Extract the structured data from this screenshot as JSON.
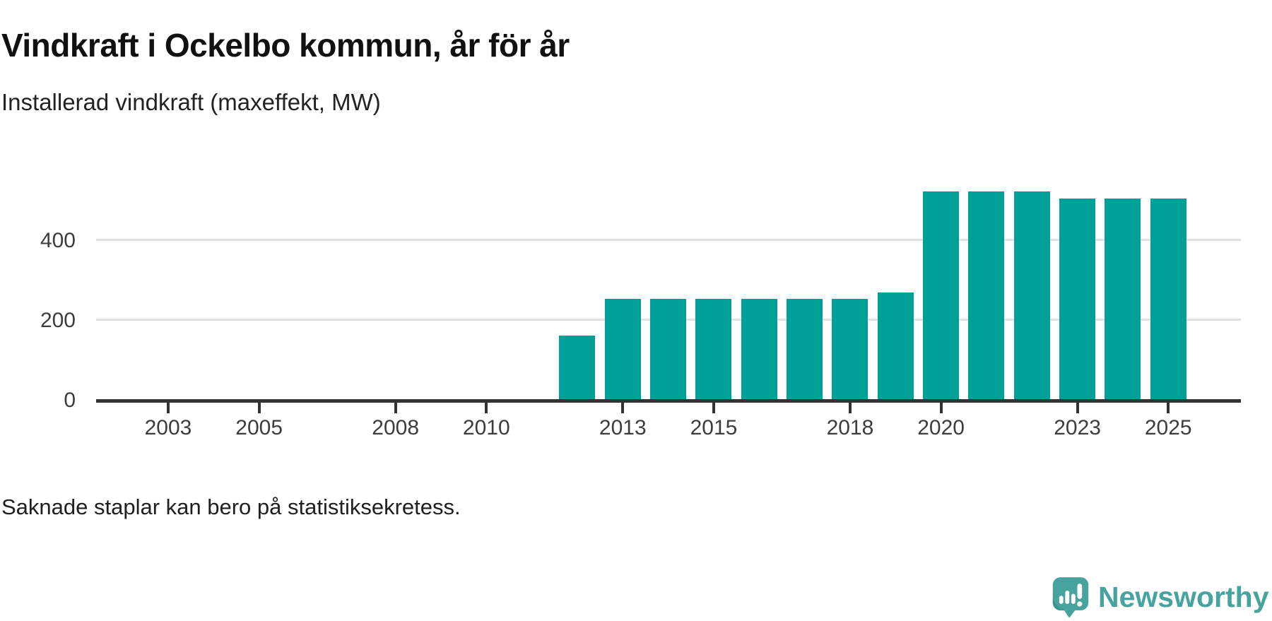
{
  "header": {
    "title": "Vindkraft i Ockelbo kommun, år för år",
    "subtitle": "Installerad vindkraft (maxeffekt, MW)"
  },
  "footer": {
    "note": "Saknade staplar kan bero på statistiksekretess.",
    "logo_text": "Newsworthy"
  },
  "colors": {
    "bar": "#00a099",
    "grid": "#e2e2e2",
    "axis": "#333333",
    "logo": "#46a39e",
    "logo_shadow": "#3a948f",
    "background": "#ffffff"
  },
  "chart_data": {
    "type": "bar",
    "title": "Vindkraft i Ockelbo kommun, år för år",
    "subtitle": "Installerad vindkraft (maxeffekt, MW)",
    "ylabel": "Installerad vindkraft (maxeffekt, MW)",
    "xlabel": "",
    "unit": "MW",
    "grid": "horizontal",
    "legend": "none",
    "x_domain": [
      2002,
      2025
    ],
    "ylim": [
      0,
      600
    ],
    "yticks": [
      0,
      200,
      400
    ],
    "xticks": [
      2003,
      2005,
      2008,
      2010,
      2013,
      2015,
      2018,
      2020,
      2023,
      2025
    ],
    "missing_years_note": "Saknade staplar kan bero på statistiksekretess.",
    "points": [
      {
        "year": 2012,
        "value": 160
      },
      {
        "year": 2013,
        "value": 252
      },
      {
        "year": 2014,
        "value": 252
      },
      {
        "year": 2015,
        "value": 252
      },
      {
        "year": 2016,
        "value": 252
      },
      {
        "year": 2017,
        "value": 252
      },
      {
        "year": 2018,
        "value": 252
      },
      {
        "year": 2019,
        "value": 268
      },
      {
        "year": 2020,
        "value": 520
      },
      {
        "year": 2021,
        "value": 520
      },
      {
        "year": 2022,
        "value": 520
      },
      {
        "year": 2023,
        "value": 503
      },
      {
        "year": 2024,
        "value": 503
      },
      {
        "year": 2025,
        "value": 503
      }
    ]
  }
}
